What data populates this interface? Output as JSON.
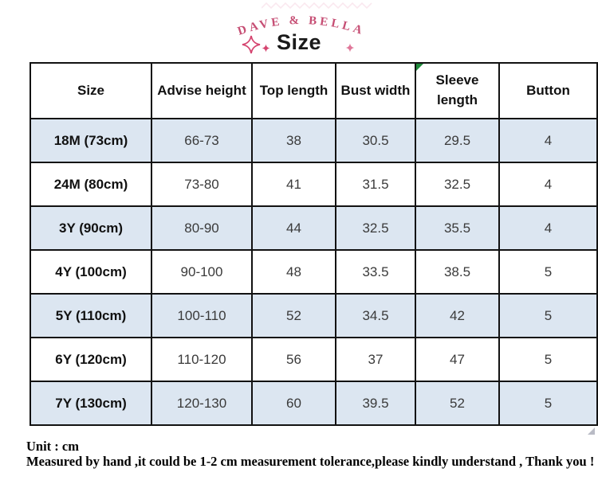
{
  "header": {
    "brand": "DAVE & BELLA",
    "title": "Size"
  },
  "table": {
    "columns": [
      {
        "label": "Size",
        "flag": false
      },
      {
        "label": "Advise height",
        "flag": false
      },
      {
        "label": "Top length",
        "flag": false
      },
      {
        "label": "Bust width",
        "flag": false
      },
      {
        "label": "Sleeve length",
        "flag": true
      },
      {
        "label": "Button",
        "flag": false
      }
    ],
    "rows": [
      [
        "18M (73cm)",
        "66-73",
        "38",
        "30.5",
        "29.5",
        "4"
      ],
      [
        "24M (80cm)",
        "73-80",
        "41",
        "31.5",
        "32.5",
        "4"
      ],
      [
        "3Y (90cm)",
        "80-90",
        "44",
        "32.5",
        "35.5",
        "4"
      ],
      [
        "4Y (100cm)",
        "90-100",
        "48",
        "33.5",
        "38.5",
        "5"
      ],
      [
        "5Y (110cm)",
        "100-110",
        "52",
        "34.5",
        "42",
        "5"
      ],
      [
        "6Y (120cm)",
        "110-120",
        "56",
        "37",
        "47",
        "5"
      ],
      [
        "7Y (130cm)",
        "120-130",
        "60",
        "39.5",
        "52",
        "5"
      ]
    ]
  },
  "footer": {
    "unit": "Unit : cm",
    "note": "Measured by hand ,it could be 1-2 cm measurement tolerance,please kindly understand , Thank you !"
  },
  "colors": {
    "brand_pink": "#c64e74",
    "row_shade": "#dce6f1",
    "border": "#121212",
    "flag_green": "#1f8a3b"
  }
}
